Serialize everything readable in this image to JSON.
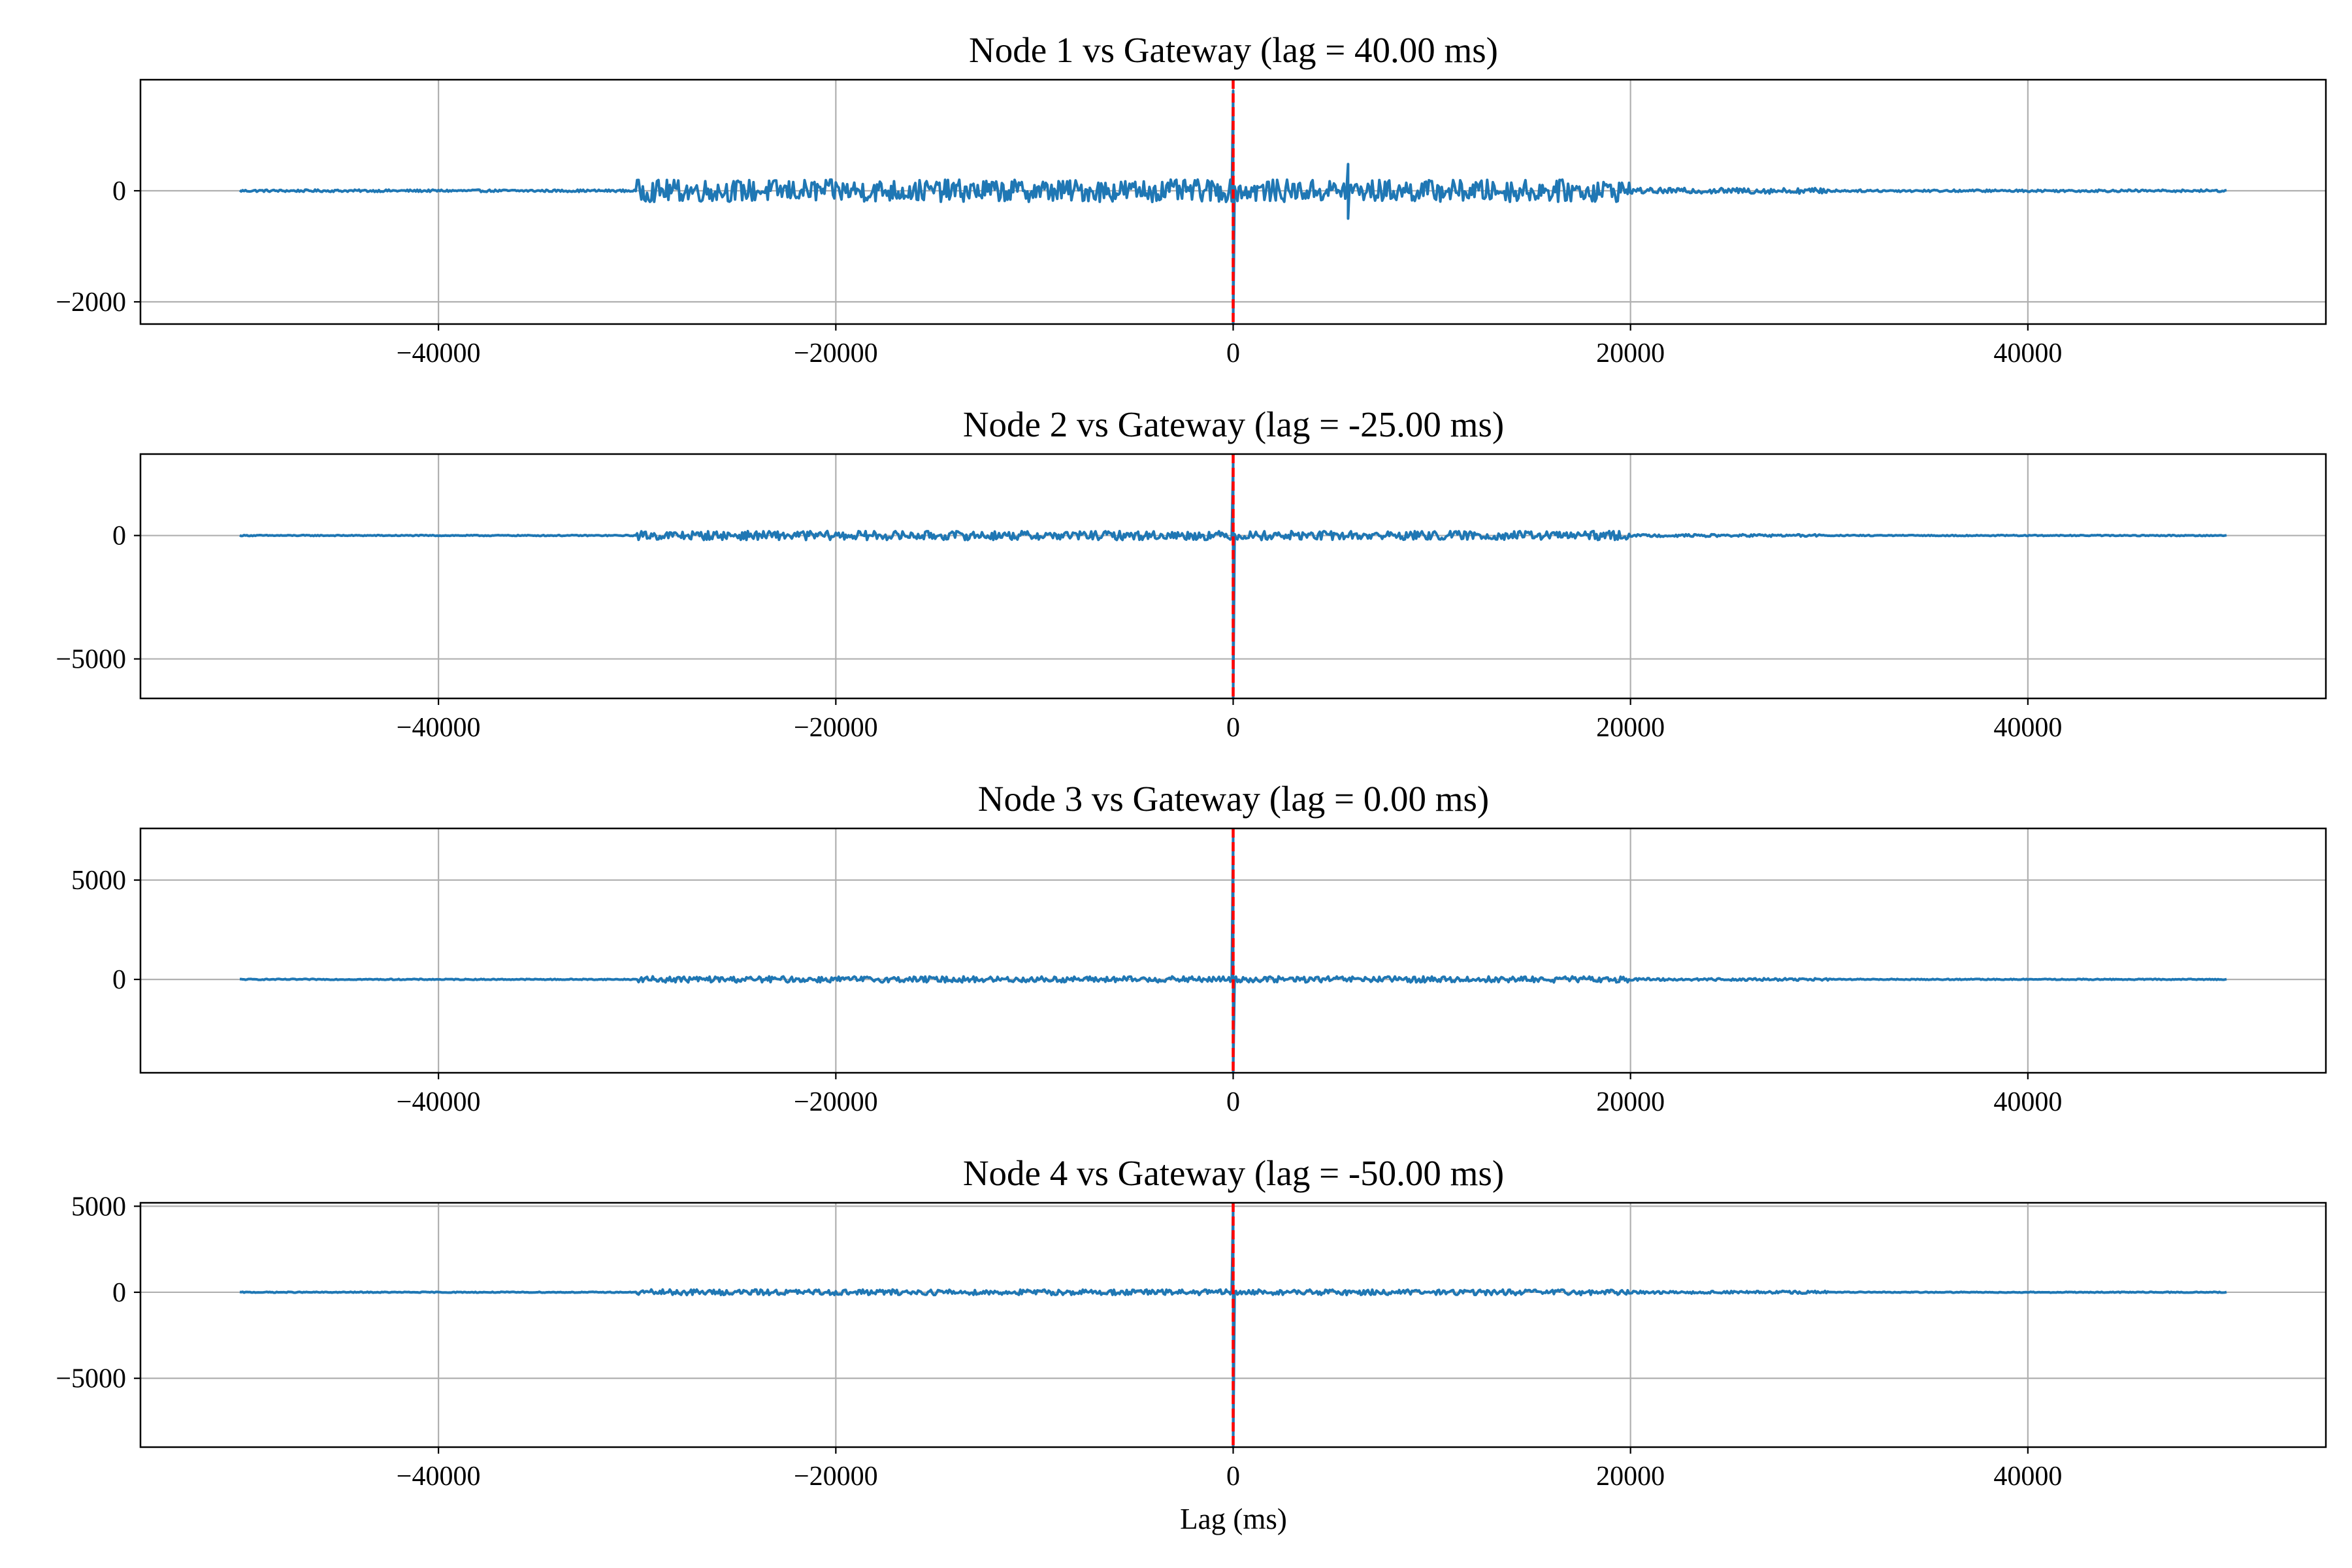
{
  "chart_data": [
    {
      "type": "line",
      "title": "Node 1 vs Gateway (lag = 40.00 ms)",
      "xlabel": "",
      "ylabel": "",
      "xlim": [
        -55000,
        55000
      ],
      "ylim": [
        -2400,
        2000
      ],
      "xticks": [
        -40000,
        -20000,
        0,
        20000,
        40000
      ],
      "xtick_labels": [
        "−40000",
        "−20000",
        "0",
        "20000",
        "40000"
      ],
      "yticks": [
        -2000,
        0
      ],
      "ytick_labels": [
        "−2000",
        "0"
      ],
      "grid": true,
      "series": [
        {
          "color": "#1f77b4",
          "x_range": [
            -50000,
            50000
          ],
          "segments": [
            {
              "x_range": [
                -50000,
                -30000
              ],
              "amplitude": 20
            },
            {
              "x_range": [
                -30000,
                20000
              ],
              "amplitude": 200
            },
            {
              "x_range": [
                20000,
                30000
              ],
              "amplitude": 50
            },
            {
              "x_range": [
                30000,
                50000
              ],
              "amplitude": 20
            }
          ],
          "peaks": [
            {
              "x": 0,
              "min": -2400,
              "max": 1800
            },
            {
              "x": 5800,
              "min": -500,
              "max": 480
            }
          ]
        }
      ],
      "marker_line": {
        "x": 0,
        "color": "#ff0000",
        "style": "dashed"
      }
    },
    {
      "type": "line",
      "title": "Node 2 vs Gateway (lag = -25.00 ms)",
      "xlabel": "",
      "ylabel": "",
      "xlim": [
        -55000,
        55000
      ],
      "ylim": [
        -6600,
        3300
      ],
      "xticks": [
        -40000,
        -20000,
        0,
        20000,
        40000
      ],
      "xtick_labels": [
        "−40000",
        "−20000",
        "0",
        "20000",
        "40000"
      ],
      "yticks": [
        -5000,
        0
      ],
      "ytick_labels": [
        "−5000",
        "0"
      ],
      "grid": true,
      "series": [
        {
          "color": "#1f77b4",
          "x_range": [
            -50000,
            50000
          ],
          "segments": [
            {
              "x_range": [
                -50000,
                -30000
              ],
              "amplitude": 20
            },
            {
              "x_range": [
                -30000,
                20000
              ],
              "amplitude": 180
            },
            {
              "x_range": [
                20000,
                30000
              ],
              "amplitude": 50
            },
            {
              "x_range": [
                30000,
                50000
              ],
              "amplitude": 20
            }
          ],
          "peaks": [
            {
              "x": 0,
              "min": -6600,
              "max": 3000
            }
          ]
        }
      ],
      "marker_line": {
        "x": 0,
        "color": "#ff0000",
        "style": "dashed"
      }
    },
    {
      "type": "line",
      "title": "Node 3 vs Gateway (lag = 0.00 ms)",
      "xlabel": "",
      "ylabel": "",
      "xlim": [
        -55000,
        55000
      ],
      "ylim": [
        -4700,
        7600
      ],
      "xticks": [
        -40000,
        -20000,
        0,
        20000,
        40000
      ],
      "xtick_labels": [
        "−40000",
        "−20000",
        "0",
        "20000",
        "40000"
      ],
      "yticks": [
        0,
        5000
      ],
      "ytick_labels": [
        "0",
        "5000"
      ],
      "grid": true,
      "series": [
        {
          "color": "#1f77b4",
          "x_range": [
            -50000,
            50000
          ],
          "segments": [
            {
              "x_range": [
                -50000,
                -30000
              ],
              "amplitude": 25
            },
            {
              "x_range": [
                -30000,
                20000
              ],
              "amplitude": 150
            },
            {
              "x_range": [
                20000,
                30000
              ],
              "amplitude": 60
            },
            {
              "x_range": [
                30000,
                50000
              ],
              "amplitude": 25
            }
          ],
          "peaks": [
            {
              "x": 0,
              "min": -4700,
              "max": 7300
            }
          ]
        }
      ],
      "marker_line": {
        "x": 0,
        "color": "#ff0000",
        "style": "dashed"
      }
    },
    {
      "type": "line",
      "title": "Node 4 vs Gateway (lag = -50.00 ms)",
      "xlabel": "Lag (ms)",
      "ylabel": "",
      "xlim": [
        -55000,
        55000
      ],
      "ylim": [
        -9000,
        5200
      ],
      "xticks": [
        -40000,
        -20000,
        0,
        20000,
        40000
      ],
      "xtick_labels": [
        "−40000",
        "−20000",
        "0",
        "20000",
        "40000"
      ],
      "yticks": [
        -5000,
        0,
        5000
      ],
      "ytick_labels": [
        "−5000",
        "0",
        "5000"
      ],
      "grid": true,
      "series": [
        {
          "color": "#1f77b4",
          "x_range": [
            -50000,
            50000
          ],
          "segments": [
            {
              "x_range": [
                -50000,
                -30000
              ],
              "amplitude": 25
            },
            {
              "x_range": [
                -30000,
                20000
              ],
              "amplitude": 160
            },
            {
              "x_range": [
                20000,
                30000
              ],
              "amplitude": 80
            },
            {
              "x_range": [
                30000,
                50000
              ],
              "amplitude": 25
            }
          ],
          "peaks": [
            {
              "x": 0,
              "min": -9000,
              "max": 5000
            }
          ]
        }
      ],
      "marker_line": {
        "x": 0,
        "color": "#ff0000",
        "style": "dashed"
      }
    }
  ]
}
